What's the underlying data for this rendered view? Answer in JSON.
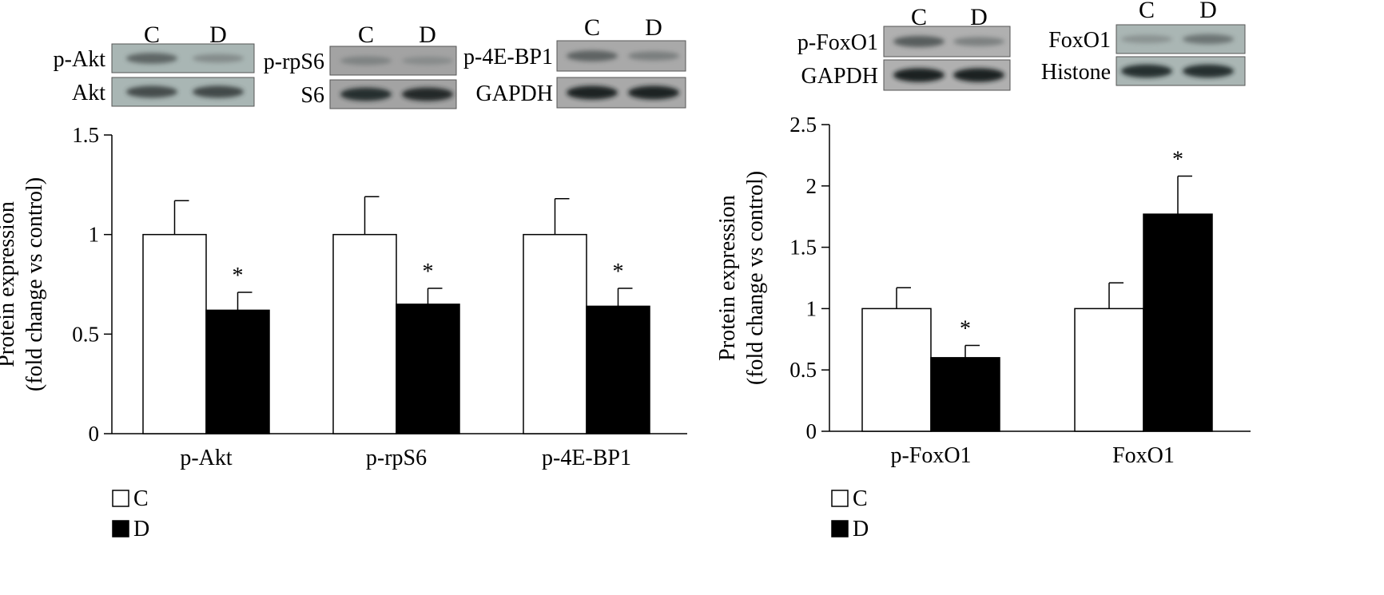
{
  "blots": {
    "left": [
      {
        "lane_labels": [
          "C",
          "D"
        ],
        "rows": [
          {
            "label": "p-Akt",
            "band_intensity": [
              0.55,
              0.28
            ]
          },
          {
            "label": "Akt",
            "band_intensity": [
              0.7,
              0.72
            ]
          }
        ]
      },
      {
        "lane_labels": [
          "C",
          "D"
        ],
        "rows": [
          {
            "label": "p-rpS6",
            "band_intensity": [
              0.3,
              0.22
            ]
          },
          {
            "label": "S6",
            "band_intensity": [
              0.85,
              0.88
            ]
          }
        ]
      },
      {
        "lane_labels": [
          "C",
          "D"
        ],
        "rows": [
          {
            "label": "p-4E-BP1",
            "band_intensity": [
              0.55,
              0.35
            ]
          },
          {
            "label": "GAPDH",
            "band_intensity": [
              0.9,
              0.9
            ]
          }
        ]
      }
    ],
    "right": [
      {
        "lane_labels": [
          "C",
          "D"
        ],
        "rows": [
          {
            "label": "p-FoxO1",
            "band_intensity": [
              0.6,
              0.35
            ]
          },
          {
            "label": "GAPDH",
            "band_intensity": [
              0.92,
              0.92
            ]
          }
        ]
      },
      {
        "lane_labels": [
          "C",
          "D"
        ],
        "rows": [
          {
            "label": "FoxO1",
            "band_intensity": [
              0.22,
              0.45
            ]
          },
          {
            "label": "Histone",
            "band_intensity": [
              0.85,
              0.85
            ]
          }
        ]
      }
    ]
  },
  "chart_data": [
    {
      "type": "bar",
      "categories": [
        "p-Akt",
        "p-rpS6",
        "p-4E-BP1"
      ],
      "series": [
        {
          "name": "C",
          "values": [
            1.0,
            1.0,
            1.0
          ],
          "errors": [
            0.17,
            0.19,
            0.18
          ],
          "color": "#ffffff"
        },
        {
          "name": "D",
          "values": [
            0.62,
            0.65,
            0.64
          ],
          "errors": [
            0.09,
            0.08,
            0.09
          ],
          "color": "#000000"
        }
      ],
      "significance": [
        [
          "",
          "*"
        ],
        [
          "",
          "*"
        ],
        [
          "",
          "*"
        ]
      ],
      "ylabel": [
        "Protein expression",
        "(fold change vs control)"
      ],
      "ylim": [
        0,
        1.5
      ],
      "yticks": [
        "0",
        "0.5",
        "1",
        "1.5"
      ],
      "yticks_values": [
        0,
        0.5,
        1,
        1.5
      ],
      "grid": false,
      "legend": {
        "position": "bottom-left",
        "items": [
          "C",
          "D"
        ]
      }
    },
    {
      "type": "bar",
      "categories": [
        "p-FoxO1",
        "FoxO1"
      ],
      "series": [
        {
          "name": "C",
          "values": [
            1.0,
            1.0
          ],
          "errors": [
            0.17,
            0.21
          ],
          "color": "#ffffff"
        },
        {
          "name": "D",
          "values": [
            0.6,
            1.77
          ],
          "errors": [
            0.1,
            0.31
          ],
          "color": "#000000"
        }
      ],
      "significance": [
        [
          "",
          "*"
        ],
        [
          "",
          "*"
        ]
      ],
      "ylabel": [
        "Protein expression",
        "(fold change vs control)"
      ],
      "ylim": [
        0,
        2.5
      ],
      "yticks": [
        "0",
        "0.5",
        "1",
        "1.5",
        "2",
        "2.5"
      ],
      "yticks_values": [
        0,
        0.5,
        1,
        1.5,
        2,
        2.5
      ],
      "grid": false,
      "legend": {
        "position": "bottom-left",
        "items": [
          "C",
          "D"
        ]
      }
    }
  ]
}
